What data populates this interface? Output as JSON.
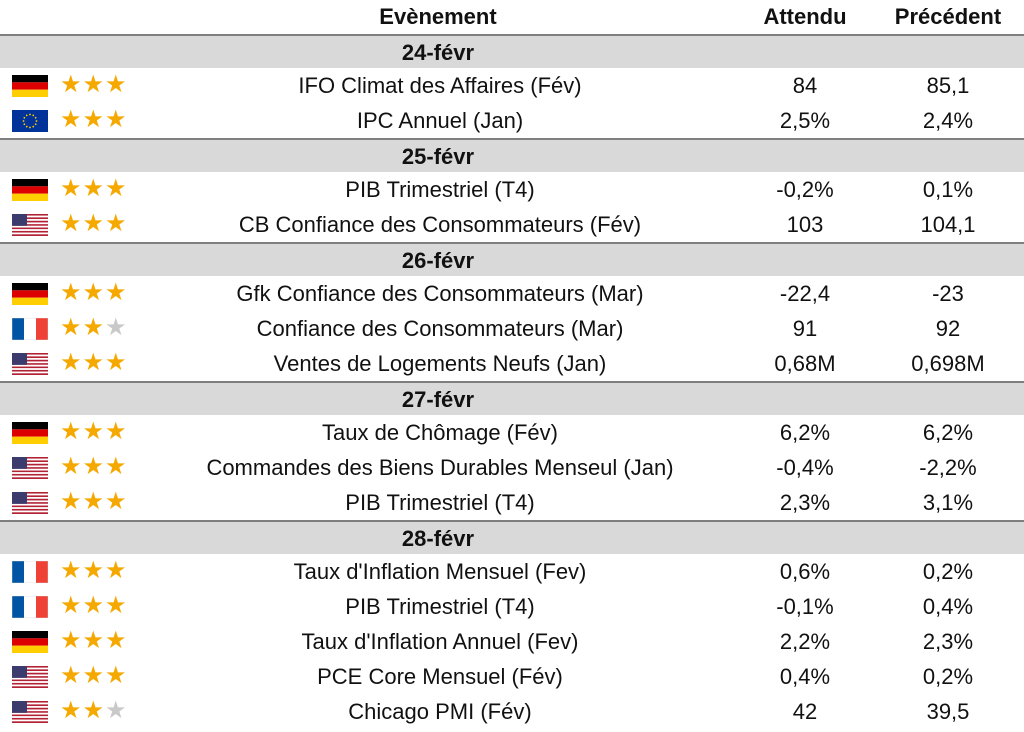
{
  "header": {
    "event": "Evènement",
    "expected": "Attendu",
    "previous": "Précédent"
  },
  "groups": [
    {
      "date": "24-févr",
      "rows": [
        {
          "flag": "germany-flag",
          "stars": 3,
          "event": "IFO Climat des Affaires (Fév)",
          "expected": "84",
          "previous": "85,1"
        },
        {
          "flag": "eu-flag",
          "stars": 3,
          "event": "IPC Annuel (Jan)",
          "expected": "2,5%",
          "previous": "2,4%"
        }
      ]
    },
    {
      "date": "25-févr",
      "rows": [
        {
          "flag": "germany-flag",
          "stars": 3,
          "event": "PIB Trimestriel (T4)",
          "expected": "-0,2%",
          "previous": "0,1%"
        },
        {
          "flag": "usa-flag",
          "stars": 3,
          "event": "CB Confiance des Consommateurs (Fév)",
          "expected": "103",
          "previous": "104,1"
        }
      ]
    },
    {
      "date": "26-févr",
      "rows": [
        {
          "flag": "germany-flag",
          "stars": 3,
          "event": "Gfk Confiance des Consommateurs (Mar)",
          "expected": "-22,4",
          "previous": "-23"
        },
        {
          "flag": "france-flag",
          "stars": 2,
          "event": "Confiance des Consommateurs (Mar)",
          "expected": "91",
          "previous": "92"
        },
        {
          "flag": "usa-flag",
          "stars": 3,
          "event": "Ventes de Logements Neufs (Jan)",
          "expected": "0,68M",
          "previous": "0,698M"
        }
      ]
    },
    {
      "date": "27-févr",
      "rows": [
        {
          "flag": "germany-flag",
          "stars": 3,
          "event": "Taux de Chômage (Fév)",
          "expected": "6,2%",
          "previous": "6,2%"
        },
        {
          "flag": "usa-flag",
          "stars": 3,
          "event": "Commandes des Biens Durables Menseul (Jan)",
          "expected": "-0,4%",
          "previous": "-2,2%"
        },
        {
          "flag": "usa-flag",
          "stars": 3,
          "event": "PIB Trimestriel (T4)",
          "expected": "2,3%",
          "previous": "3,1%"
        }
      ]
    },
    {
      "date": "28-févr",
      "rows": [
        {
          "flag": "france-flag",
          "stars": 3,
          "event": "Taux d'Inflation Mensuel (Fev)",
          "expected": "0,6%",
          "previous": "0,2%"
        },
        {
          "flag": "france-flag",
          "stars": 3,
          "event": "PIB Trimestriel (T4)",
          "expected": "-0,1%",
          "previous": "0,4%"
        },
        {
          "flag": "germany-flag",
          "stars": 3,
          "event": "Taux d'Inflation Annuel (Fev)",
          "expected": "2,2%",
          "previous": "2,3%"
        },
        {
          "flag": "usa-flag",
          "stars": 3,
          "event": "PCE Core Mensuel (Fév)",
          "expected": "0,4%",
          "previous": "0,2%"
        },
        {
          "flag": "usa-flag",
          "stars": 2,
          "event": "Chicago PMI (Fév)",
          "expected": "42",
          "previous": "39,5"
        }
      ]
    }
  ],
  "colors": {
    "star_on": "#f5a800",
    "star_off": "#c9c9c9",
    "date_bg": "#d9d9d9"
  }
}
